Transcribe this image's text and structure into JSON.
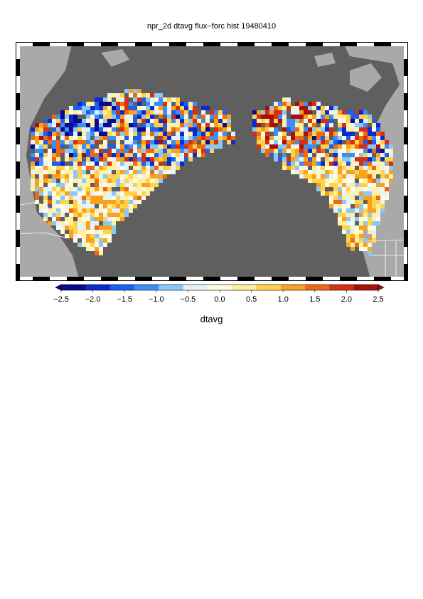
{
  "title": "npr_2d dtavg flux−forc hist 19480410",
  "colors": {
    "ocean": "#5f5f5f",
    "land_bg": "#a9a9a9",
    "border": "#ffffff"
  },
  "colorbar": {
    "label": "dtavg",
    "ticks": [
      "−2.5",
      "−2.0",
      "−1.5",
      "−1.0",
      "−0.5",
      "0.0",
      "0.5",
      "1.0",
      "1.5",
      "2.0",
      "2.5"
    ],
    "range": [
      -2.5,
      2.5
    ],
    "colors": [
      "#0a0a8c",
      "#0a2ad2",
      "#1a5ff0",
      "#3d8ff5",
      "#8cc8f5",
      "#e6f2fa",
      "#fffbe0",
      "#fff0a0",
      "#ffd24a",
      "#f9a21f",
      "#ee6a12",
      "#d8300e",
      "#a8100a"
    ]
  }
}
